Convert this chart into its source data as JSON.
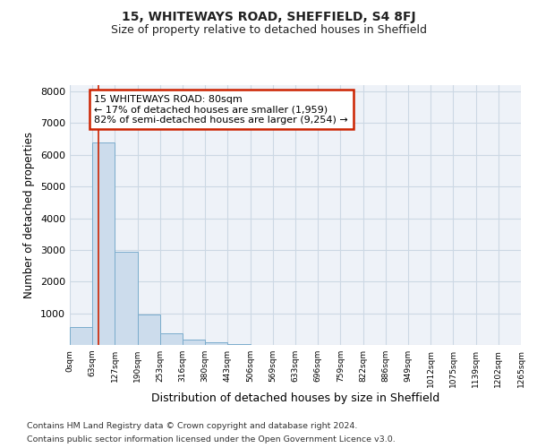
{
  "title1": "15, WHITEWAYS ROAD, SHEFFIELD, S4 8FJ",
  "title2": "Size of property relative to detached houses in Sheffield",
  "xlabel": "Distribution of detached houses by size in Sheffield",
  "ylabel": "Number of detached properties",
  "bin_labels": [
    "0sqm",
    "63sqm",
    "127sqm",
    "190sqm",
    "253sqm",
    "316sqm",
    "380sqm",
    "443sqm",
    "506sqm",
    "569sqm",
    "633sqm",
    "696sqm",
    "759sqm",
    "822sqm",
    "886sqm",
    "949sqm",
    "1012sqm",
    "1075sqm",
    "1139sqm",
    "1202sqm",
    "1265sqm"
  ],
  "bar_values": [
    560,
    6380,
    2950,
    950,
    380,
    160,
    80,
    40,
    0,
    0,
    0,
    0,
    0,
    0,
    0,
    0,
    0,
    0,
    0,
    0
  ],
  "bar_color": "#ccdcec",
  "bar_edge_color": "#7aaccc",
  "property_line_x": 80,
  "property_line_color": "#cc2200",
  "annotation_line1": "15 WHITEWAYS ROAD: 80sqm",
  "annotation_line2": "← 17% of detached houses are smaller (1,959)",
  "annotation_line3": "82% of semi-detached houses are larger (9,254) →",
  "annotation_box_color": "#ffffff",
  "annotation_box_edge_color": "#cc2200",
  "ylim": [
    0,
    8200
  ],
  "yticks": [
    0,
    1000,
    2000,
    3000,
    4000,
    5000,
    6000,
    7000,
    8000
  ],
  "grid_color": "#ccd8e4",
  "bg_color": "#eef2f8",
  "footnote_line1": "Contains HM Land Registry data © Crown copyright and database right 2024.",
  "footnote_line2": "Contains public sector information licensed under the Open Government Licence v3.0.",
  "bin_width": 63,
  "num_bins": 20
}
